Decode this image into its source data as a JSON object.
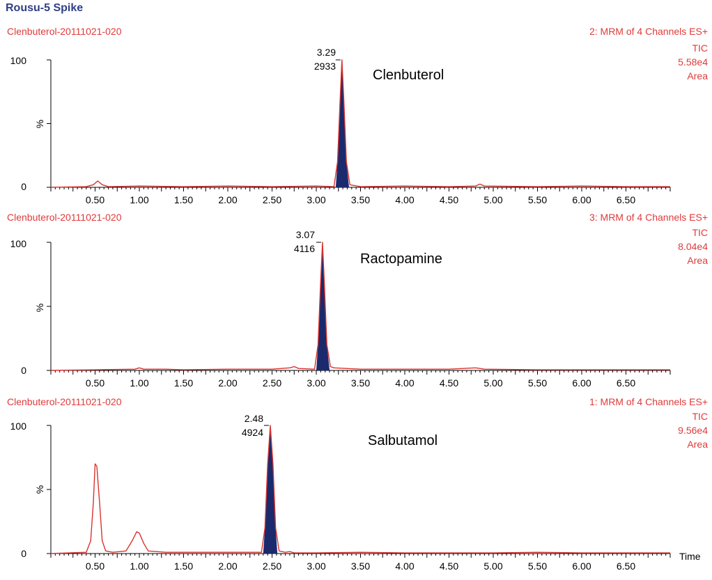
{
  "title": "Rousu-5 Spike",
  "chart_data": [
    {
      "type": "line",
      "sample": "Clenbuterol-20111021-020",
      "channel_info": [
        "2: MRM of 4 Channels ES+",
        "TIC",
        "5.58e4",
        "Area"
      ],
      "compound": "Clenbuterol",
      "peak_label": {
        "rt": "3.29",
        "area": "2933"
      },
      "ylabel": "%",
      "y_ticks": [
        "0",
        "100"
      ],
      "x_ticks": [
        "0.50",
        "1.00",
        "1.50",
        "2.00",
        "2.50",
        "3.00",
        "3.50",
        "4.00",
        "4.50",
        "5.00",
        "5.50",
        "6.00",
        "6.50"
      ],
      "xlabel": "",
      "xlim": [
        0.0,
        7.0
      ],
      "ylim": [
        0,
        100
      ],
      "x": [
        0.0,
        0.4,
        0.48,
        0.53,
        0.58,
        0.65,
        1.0,
        1.5,
        2.0,
        2.5,
        3.0,
        3.2,
        3.24,
        3.27,
        3.29,
        3.31,
        3.34,
        3.38,
        3.5,
        4.0,
        4.5,
        4.8,
        4.85,
        4.9,
        5.5,
        6.0,
        6.5,
        7.0
      ],
      "y": [
        0,
        0.5,
        2,
        5,
        2,
        0.5,
        1,
        0.5,
        1,
        0.5,
        1,
        0.5,
        20,
        70,
        100,
        70,
        20,
        2,
        0.5,
        1,
        0.5,
        1,
        2.5,
        1,
        0.5,
        1,
        0.5,
        0.5
      ],
      "filled_peak": [
        3.22,
        3.37
      ]
    },
    {
      "type": "line",
      "sample": "Clenbuterol-20111021-020",
      "channel_info": [
        "3: MRM of 4 Channels ES+",
        "TIC",
        "8.04e4",
        "Area"
      ],
      "compound": "Ractopamine",
      "peak_label": {
        "rt": "3.07",
        "area": "4116"
      },
      "ylabel": "%",
      "y_ticks": [
        "0",
        "100"
      ],
      "x_ticks": [
        "0.50",
        "1.00",
        "1.50",
        "2.00",
        "2.50",
        "3.00",
        "3.50",
        "4.00",
        "4.50",
        "5.00",
        "5.50",
        "6.00",
        "6.50"
      ],
      "xlabel": "",
      "xlim": [
        0.0,
        7.0
      ],
      "ylim": [
        0,
        100
      ],
      "x": [
        0.0,
        0.5,
        0.95,
        1.0,
        1.05,
        1.3,
        1.5,
        2.0,
        2.5,
        2.7,
        2.75,
        2.8,
        2.98,
        3.02,
        3.05,
        3.07,
        3.09,
        3.12,
        3.16,
        3.2,
        3.5,
        4.0,
        4.5,
        4.8,
        4.85,
        4.9,
        5.5,
        6.0,
        7.0
      ],
      "y": [
        0,
        0.5,
        1,
        2,
        1,
        1,
        0.5,
        1,
        1,
        2,
        3,
        1.5,
        1,
        20,
        70,
        100,
        70,
        20,
        3,
        2,
        1,
        1,
        1,
        2,
        1.5,
        1,
        0.5,
        0.5,
        0.5
      ],
      "filled_peak": [
        3.0,
        3.15
      ]
    },
    {
      "type": "line",
      "sample": "Clenbuterol-20111021-020",
      "channel_info": [
        "1: MRM of 4 Channels ES+",
        "TIC",
        "9.56e4",
        "Area"
      ],
      "compound": "Salbutamol",
      "peak_label": {
        "rt": "2.48",
        "area": "4924"
      },
      "ylabel": "%",
      "y_ticks": [
        "0",
        "100"
      ],
      "x_ticks": [
        "0.50",
        "1.00",
        "1.50",
        "2.00",
        "2.50",
        "3.00",
        "3.50",
        "4.00",
        "4.50",
        "5.00",
        "5.50",
        "6.00",
        "6.50"
      ],
      "xlabel": "Time",
      "xlim": [
        0.0,
        7.0
      ],
      "ylim": [
        0,
        100
      ],
      "x": [
        0.0,
        0.4,
        0.45,
        0.48,
        0.5,
        0.52,
        0.55,
        0.58,
        0.62,
        0.7,
        0.85,
        0.92,
        0.97,
        1.0,
        1.05,
        1.1,
        1.3,
        1.5,
        2.0,
        2.38,
        2.42,
        2.45,
        2.48,
        2.51,
        2.54,
        2.58,
        2.65,
        2.7,
        2.75,
        3.0,
        3.5,
        4.0,
        5.0,
        5.5,
        6.0,
        6.5,
        7.0
      ],
      "y": [
        0,
        1,
        10,
        40,
        70,
        68,
        40,
        10,
        2,
        1,
        2,
        10,
        17,
        16,
        8,
        2,
        1,
        1,
        1,
        1,
        20,
        70,
        100,
        70,
        20,
        2,
        1,
        1.5,
        0.5,
        0.5,
        1,
        0.5,
        0.5,
        1,
        0.5,
        0.5,
        0.5
      ],
      "filled_peak": [
        2.4,
        2.56
      ]
    }
  ],
  "colors": {
    "title": "#2e3f86",
    "trace": "#d9322e",
    "text_red": "#e03a3a",
    "peak_fill": "#1a2a6c",
    "axis": "#000000"
  }
}
